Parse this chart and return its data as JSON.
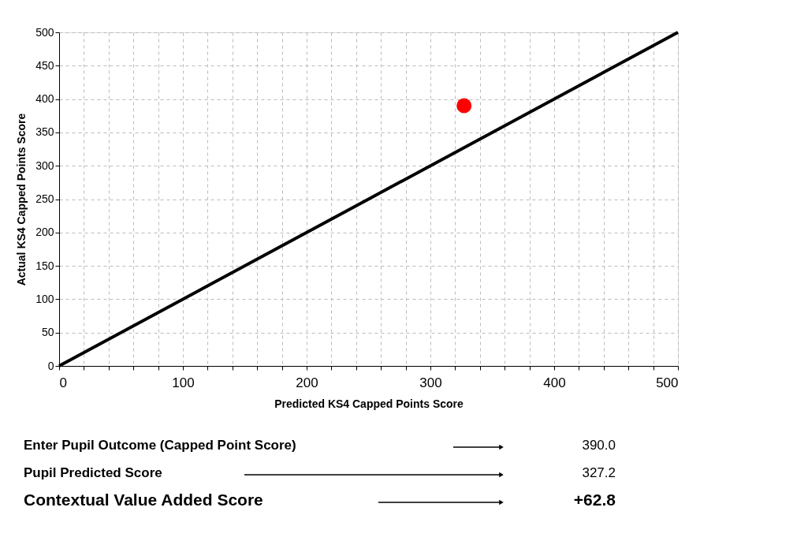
{
  "chart_data": {
    "type": "scatter",
    "xlabel": "Predicted KS4 Capped Points Score",
    "ylabel": "Actual KS4 Capped Points Score",
    "series": [
      {
        "type": "line",
        "color": "#000000",
        "x": [
          0,
          500
        ],
        "values": [
          0,
          500
        ]
      },
      {
        "color": "#ff0000",
        "marker": "circle",
        "x": [
          327.2
        ],
        "values": [
          390.0
        ]
      }
    ],
    "xlim": [
      0,
      500
    ],
    "ylim": [
      0,
      500
    ],
    "xticks": [
      0,
      {
        "value": 20,
        "label": null
      },
      {
        "value": 40,
        "label": null
      },
      {
        "value": 60,
        "label": null
      },
      {
        "value": 80,
        "label": null
      },
      100,
      {
        "value": 120,
        "label": null
      },
      {
        "value": 140,
        "label": null
      },
      {
        "value": 160,
        "label": null
      },
      {
        "value": 180,
        "label": null
      },
      200,
      {
        "value": 220,
        "label": null
      },
      {
        "value": 240,
        "label": null
      },
      {
        "value": 260,
        "label": null
      },
      {
        "value": 280,
        "label": null
      },
      300,
      {
        "value": 320,
        "label": null
      },
      {
        "value": 340,
        "label": null
      },
      {
        "value": 360,
        "label": null
      },
      {
        "value": 380,
        "label": null
      },
      400,
      {
        "value": 420,
        "label": null
      },
      {
        "value": 440,
        "label": null
      },
      {
        "value": 460,
        "label": null
      },
      {
        "value": 480,
        "label": null
      },
      500
    ],
    "yticks": [
      0,
      50,
      100,
      150,
      200,
      250,
      300,
      350,
      400,
      450,
      500
    ],
    "grid": true,
    "annotations": [
      "Enter Pupil Outcome (Capped Point Score)",
      "390.0",
      "Pupil Predicted Score",
      "327.2",
      "Contextual Value Added Score",
      "+62.8"
    ]
  }
}
